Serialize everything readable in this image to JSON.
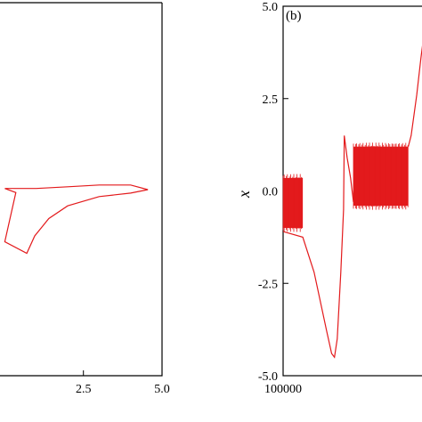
{
  "chart_data": [
    {
      "type": "line",
      "panel": "a",
      "title": "",
      "xlabel": "",
      "ylabel": "",
      "xlim": [
        0.0,
        5.0
      ],
      "x_tick_labels": [
        "2.5",
        "5.0"
      ],
      "grid": false,
      "series": [
        {
          "color": "#e31a1c",
          "points": [
            {
              "x": 0.0,
              "y": 0.02
            },
            {
              "x": 1.0,
              "y": 0.02
            },
            {
              "x": 2.0,
              "y": 0.05
            },
            {
              "x": 3.0,
              "y": 0.08
            },
            {
              "x": 4.0,
              "y": 0.08
            },
            {
              "x": 4.55,
              "y": 0.0
            },
            {
              "x": 4.0,
              "y": -0.06
            },
            {
              "x": 3.0,
              "y": -0.12
            },
            {
              "x": 2.0,
              "y": -0.28
            },
            {
              "x": 1.4,
              "y": -0.5
            },
            {
              "x": 0.95,
              "y": -0.8
            },
            {
              "x": 0.7,
              "y": -1.1
            },
            {
              "x": 0.0,
              "y": -0.9
            },
            {
              "x": 0.35,
              "y": -0.05
            },
            {
              "x": 0.0,
              "y": 0.02
            }
          ]
        }
      ]
    },
    {
      "type": "line",
      "panel": "b",
      "panel_label": "(b)",
      "title": "",
      "xlabel": "",
      "ylabel": "x",
      "ylim": [
        -5.0,
        5.0
      ],
      "x_tick_labels": [
        "100000"
      ],
      "y_tick_labels": [
        "5.0",
        "2.5",
        "0.0",
        "-2.5",
        "-5.0"
      ],
      "grid": false,
      "series": [
        {
          "color": "#e31a1c",
          "segments": [
            {
              "kind": "band",
              "x0": 0.0,
              "x1": 0.14,
              "y_low": -1.0,
              "y_high": 0.35
            },
            {
              "kind": "line",
              "points": [
                [
                  0.0,
                  -1.1
                ],
                [
                  0.14,
                  -1.25
                ],
                [
                  0.22,
                  -2.2
                ],
                [
                  0.31,
                  -3.8
                ],
                [
                  0.345,
                  -4.4
                ],
                [
                  0.365,
                  -4.5
                ],
                [
                  0.385,
                  -4.0
                ],
                [
                  0.41,
                  -2.2
                ],
                [
                  0.43,
                  -0.5
                ],
                [
                  0.435,
                  1.5
                ],
                [
                  0.455,
                  0.9
                ],
                [
                  0.48,
                  0.35
                ],
                [
                  0.5,
                  -0.3
                ]
              ]
            },
            {
              "kind": "band",
              "x0": 0.5,
              "x1": 0.89,
              "y_low": -0.4,
              "y_high": 1.2
            },
            {
              "kind": "line",
              "points": [
                [
                  0.89,
                  1.2
                ],
                [
                  0.91,
                  1.5
                ],
                [
                  0.95,
                  2.6
                ],
                [
                  0.98,
                  3.6
                ],
                [
                  1.0,
                  4.2
                ]
              ]
            }
          ]
        }
      ]
    }
  ]
}
